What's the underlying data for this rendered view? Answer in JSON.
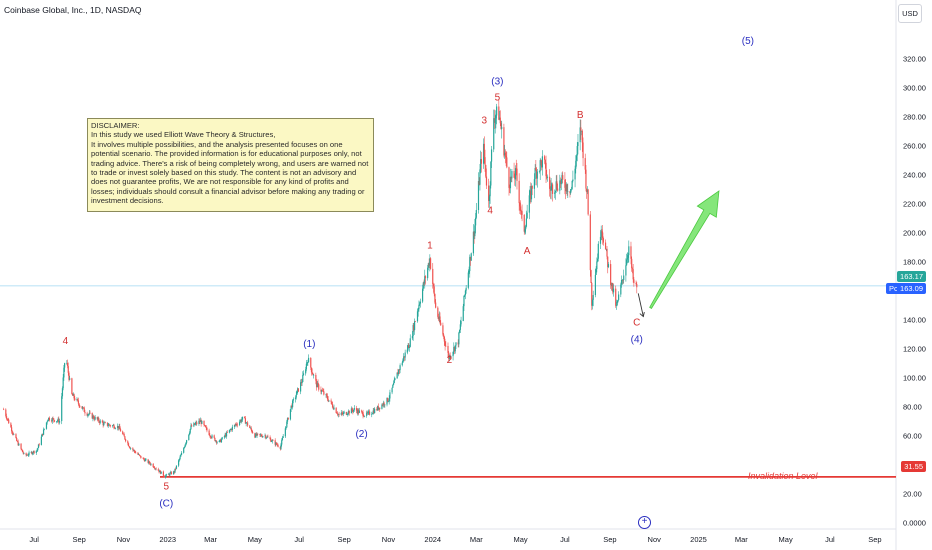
{
  "header": {
    "title": "Coinbase Global, Inc., 1D, NASDAQ",
    "currency_button": "USD"
  },
  "disclaimer": {
    "lines": [
      "DISCLAIMER:",
      "In this study we used Elliott Wave Theory & Structures,",
      "It involves multiple possibilities, and the analysis presented focuses on one",
      "potential scenario. The provided information is for educational purposes only, not",
      "trading advice. There's a risk of being completely wrong, and users are warned not",
      "to trade or invest solely based on this study. The content is not an advisory and",
      "does not guarantee profits, We are not responsible for any kind of profits and",
      "losses; individuals should consult a financial advisor before making any trading or",
      "investment decisions."
    ]
  },
  "price_tags": {
    "last": "163.17",
    "post_label": "Post",
    "post": "163.09",
    "invalidation": "31.55"
  },
  "invalidation_label": "Invalidation Level",
  "plus_symbol": "+",
  "colors": {
    "up_candle": "#26a69a",
    "down_candle": "#ef5350",
    "wave_blue": "#2a2ec0",
    "wave_red": "#d32f2f",
    "invalidation_line": "#e53935",
    "arrow_green": "#66e05a",
    "last_price": "#26a69a",
    "post_price": "#2962ff"
  },
  "chart_data": {
    "type": "candlestick",
    "title": "Coinbase Global, Inc., 1D, NASDAQ",
    "y_axis": {
      "ticks": [
        "0.0000",
        "20.00",
        "40.00",
        "60.00",
        "80.00",
        "100.00",
        "120.00",
        "140.00",
        "160.00",
        "180.00",
        "200.00",
        "220.00",
        "240.00",
        "260.00",
        "280.00",
        "300.00",
        "320.00"
      ],
      "range": [
        -3,
        345
      ],
      "currency": "USD"
    },
    "x_axis": {
      "ticks": [
        "Jul",
        "Sep",
        "Nov",
        "2023",
        "Mar",
        "May",
        "Jul",
        "Sep",
        "Nov",
        "2024",
        "Mar",
        "May",
        "Jul",
        "Sep",
        "Nov",
        "2025",
        "Mar",
        "May",
        "Jul",
        "Sep"
      ],
      "range": [
        "2022-05-15",
        "2025-09-30"
      ]
    },
    "price_path": [
      [
        "2022-05-20",
        78
      ],
      [
        "2022-06-05",
        58
      ],
      [
        "2022-06-18",
        46
      ],
      [
        "2022-07-05",
        50
      ],
      [
        "2022-07-20",
        72
      ],
      [
        "2022-08-05",
        70
      ],
      [
        "2022-08-13",
        116
      ],
      [
        "2022-08-22",
        88
      ],
      [
        "2022-09-10",
        76
      ],
      [
        "2022-10-05",
        68
      ],
      [
        "2022-10-25",
        66
      ],
      [
        "2022-11-10",
        52
      ],
      [
        "2022-11-25",
        45
      ],
      [
        "2022-12-10",
        40
      ],
      [
        "2022-12-28",
        32
      ],
      [
        "2023-01-10",
        35
      ],
      [
        "2023-01-22",
        50
      ],
      [
        "2023-02-02",
        66
      ],
      [
        "2023-02-15",
        70
      ],
      [
        "2023-03-01",
        60
      ],
      [
        "2023-03-12",
        55
      ],
      [
        "2023-04-01",
        66
      ],
      [
        "2023-04-15",
        72
      ],
      [
        "2023-05-01",
        60
      ],
      [
        "2023-05-15",
        60
      ],
      [
        "2023-06-05",
        52
      ],
      [
        "2023-06-20",
        80
      ],
      [
        "2023-07-05",
        98
      ],
      [
        "2023-07-13",
        113
      ],
      [
        "2023-07-25",
        95
      ],
      [
        "2023-08-10",
        85
      ],
      [
        "2023-08-25",
        74
      ],
      [
        "2023-09-15",
        78
      ],
      [
        "2023-10-01",
        74
      ],
      [
        "2023-10-15",
        78
      ],
      [
        "2023-11-01",
        85
      ],
      [
        "2023-11-15",
        105
      ],
      [
        "2023-12-01",
        125
      ],
      [
        "2023-12-15",
        155
      ],
      [
        "2023-12-28",
        182
      ],
      [
        "2024-01-05",
        148
      ],
      [
        "2024-01-15",
        130
      ],
      [
        "2024-01-23",
        114
      ],
      [
        "2024-02-05",
        125
      ],
      [
        "2024-02-15",
        160
      ],
      [
        "2024-02-28",
        205
      ],
      [
        "2024-03-10",
        262
      ],
      [
        "2024-03-18",
        220
      ],
      [
        "2024-03-25",
        280
      ],
      [
        "2024-04-01",
        282
      ],
      [
        "2024-04-15",
        235
      ],
      [
        "2024-04-25",
        240
      ],
      [
        "2024-05-05",
        200
      ],
      [
        "2024-05-20",
        240
      ],
      [
        "2024-06-01",
        250
      ],
      [
        "2024-06-10",
        230
      ],
      [
        "2024-06-25",
        235
      ],
      [
        "2024-07-10",
        230
      ],
      [
        "2024-07-23",
        272
      ],
      [
        "2024-08-01",
        225
      ],
      [
        "2024-08-07",
        152
      ],
      [
        "2024-08-20",
        205
      ],
      [
        "2024-09-01",
        170
      ],
      [
        "2024-09-10",
        148
      ],
      [
        "2024-09-20",
        172
      ],
      [
        "2024-09-27",
        190
      ],
      [
        "2024-10-05",
        160
      ],
      [
        "2024-10-08",
        163
      ]
    ],
    "last_price": 163.17,
    "post_market_price": 163.09,
    "invalidation_level": 31.55,
    "annotations": [
      {
        "text": "4",
        "date": "2022-08-13",
        "y": 123,
        "color": "red"
      },
      {
        "text": "5",
        "date": "2022-12-30",
        "y": 23,
        "color": "red"
      },
      {
        "text": "(C)",
        "date": "2022-12-30",
        "y": 11,
        "color": "blue"
      },
      {
        "text": "(1)",
        "date": "2023-07-15",
        "y": 121,
        "color": "blue"
      },
      {
        "text": "(2)",
        "date": "2023-09-25",
        "y": 59,
        "color": "blue"
      },
      {
        "text": "1",
        "date": "2023-12-28",
        "y": 189,
        "color": "red"
      },
      {
        "text": "2",
        "date": "2024-01-24",
        "y": 110,
        "color": "red"
      },
      {
        "text": "3",
        "date": "2024-03-12",
        "y": 275,
        "color": "red"
      },
      {
        "text": "4",
        "date": "2024-03-20",
        "y": 213,
        "color": "red"
      },
      {
        "text": "5",
        "date": "2024-03-30",
        "y": 291,
        "color": "red"
      },
      {
        "text": "(3)",
        "date": "2024-03-30",
        "y": 302,
        "color": "blue"
      },
      {
        "text": "A",
        "date": "2024-05-10",
        "y": 185,
        "color": "red"
      },
      {
        "text": "B",
        "date": "2024-07-22",
        "y": 279,
        "color": "red"
      },
      {
        "text": "C",
        "date": "2024-10-08",
        "y": 136,
        "color": "red"
      },
      {
        "text": "(4)",
        "date": "2024-10-08",
        "y": 124,
        "color": "blue"
      },
      {
        "text": "(5)",
        "date": "2025-03-10",
        "y": 330,
        "color": "blue"
      }
    ],
    "grid": false,
    "legend": "none"
  }
}
